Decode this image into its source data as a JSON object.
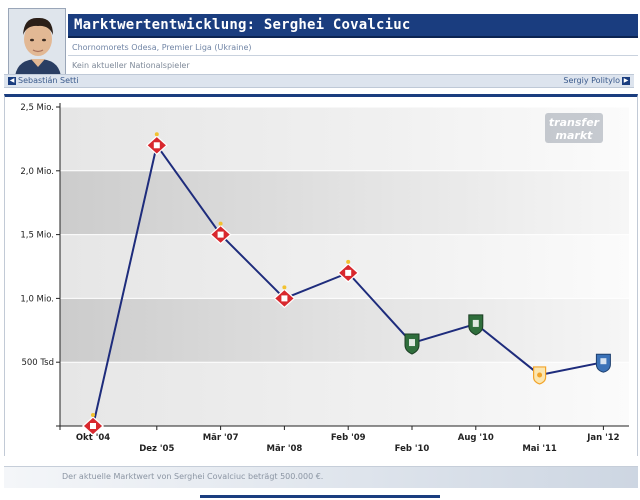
{
  "header": {
    "title": "Marktwertentwicklung: Serghei Covalciuc",
    "club_line": "Chornomorets Odesa, Premier Liga (Ukraine)",
    "national_line": "Kein aktueller Nationalspieler",
    "prev_player": "Sebastián Setti",
    "next_player": "Sergiy Politylo"
  },
  "watermark": {
    "line1": "transfer",
    "line2": "markt"
  },
  "footer": {
    "text": "Der aktuelle Marktwert von Serghei Covalciuc beträgt 500.000 €."
  },
  "colors": {
    "header_blue": "#1a3d7f",
    "line": "#1e2c7c",
    "spartak_red": "#d8282e",
    "chornomorets_green": "#2f6e3c",
    "lokomotiv_orange": "#f2a42a",
    "last_club_blue": "#3b72b8"
  },
  "chart_data": {
    "type": "line",
    "title": "",
    "xlabel": "",
    "ylabel": "",
    "ylim": [
      0,
      2500000
    ],
    "y_ticks": [
      {
        "value": 500000,
        "label": "500 Tsd"
      },
      {
        "value": 1000000,
        "label": "1,0 Mio."
      },
      {
        "value": 1500000,
        "label": "1,5 Mio."
      },
      {
        "value": 2000000,
        "label": "2,0 Mio."
      },
      {
        "value": 2500000,
        "label": "2,5 Mio."
      }
    ],
    "categories": [
      "Okt '04",
      "Dez '05",
      "Mär '07",
      "Mär '08",
      "Feb '09",
      "Feb '10",
      "Aug '10",
      "Mai '11",
      "Jan '12"
    ],
    "series": [
      {
        "values": [
          0,
          2200000,
          1500000,
          1000000,
          1200000,
          650000,
          800000,
          400000,
          500000
        ],
        "markers": [
          "spartak",
          "spartak",
          "spartak",
          "spartak",
          "spartak",
          "chornomorets",
          "chornomorets",
          "lokomotiv",
          "blue-crest"
        ]
      }
    ],
    "grid": true,
    "legend": "none"
  }
}
